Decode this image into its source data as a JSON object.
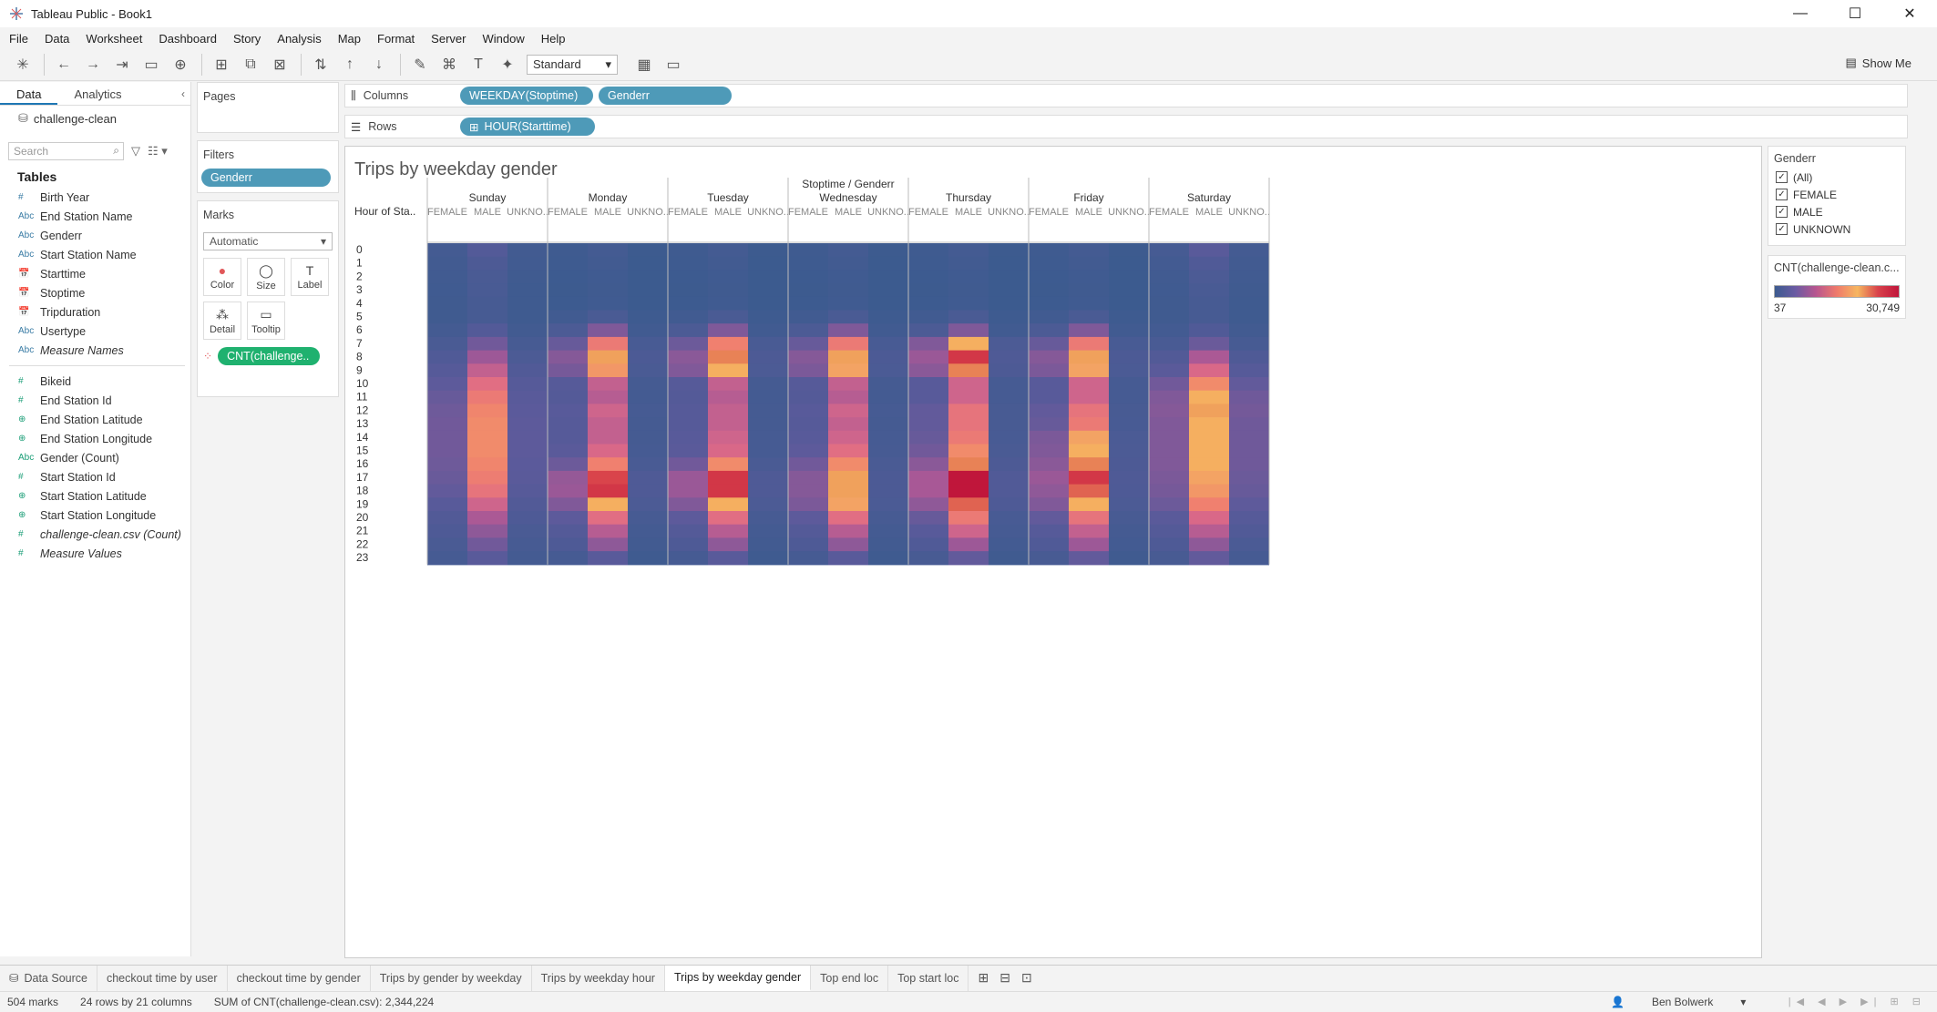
{
  "window": {
    "title": "Tableau Public - Book1",
    "minimize": "—",
    "maximize": "☐",
    "close": "✕"
  },
  "menu": [
    "File",
    "Data",
    "Worksheet",
    "Dashboard",
    "Story",
    "Analysis",
    "Map",
    "Format",
    "Server",
    "Window",
    "Help"
  ],
  "toolbar": {
    "fit_select": "Standard",
    "show_me_label": "Show Me"
  },
  "datapane": {
    "tabs": [
      "Data",
      "Analytics"
    ],
    "datasource": "challenge-clean",
    "search_placeholder": "Search",
    "tables_header": "Tables",
    "dimensions": [
      {
        "type": "#",
        "name": "Birth Year",
        "italic": false
      },
      {
        "type": "Abc",
        "name": "End Station Name",
        "italic": false
      },
      {
        "type": "Abc",
        "name": "Genderr",
        "italic": false
      },
      {
        "type": "Abc",
        "name": "Start Station Name",
        "italic": false
      },
      {
        "type": "date",
        "name": "Starttime",
        "italic": false
      },
      {
        "type": "date",
        "name": "Stoptime",
        "italic": false
      },
      {
        "type": "date",
        "name": "Tripduration",
        "italic": false
      },
      {
        "type": "Abc",
        "name": "Usertype",
        "italic": false
      },
      {
        "type": "Abc",
        "name": "Measure Names",
        "italic": true
      }
    ],
    "measures": [
      {
        "type": "#",
        "name": "Bikeid",
        "italic": false
      },
      {
        "type": "#",
        "name": "End Station Id",
        "italic": false
      },
      {
        "type": "globe",
        "name": "End Station Latitude",
        "italic": false
      },
      {
        "type": "globe",
        "name": "End Station Longitude",
        "italic": false
      },
      {
        "type": "Abc",
        "name": "Gender (Count)",
        "italic": false
      },
      {
        "type": "#",
        "name": "Start Station Id",
        "italic": false
      },
      {
        "type": "globe",
        "name": "Start Station Latitude",
        "italic": false
      },
      {
        "type": "globe",
        "name": "Start Station Longitude",
        "italic": false
      },
      {
        "type": "#",
        "name": "challenge-clean.csv (Count)",
        "italic": true
      },
      {
        "type": "#",
        "name": "Measure Values",
        "italic": true
      }
    ]
  },
  "cards": {
    "pages_title": "Pages",
    "filters_title": "Filters",
    "filter_pill": "Genderr",
    "marks_title": "Marks",
    "marks_type": "Automatic",
    "mark_buttons": [
      "Color",
      "Size",
      "Label",
      "Detail",
      "Tooltip"
    ],
    "marks_pill": "CNT(challenge.."
  },
  "shelves": {
    "columns_label": "Columns",
    "rows_label": "Rows",
    "columns_pills": [
      "WEEKDAY(Stoptime)",
      "Genderr"
    ],
    "rows_pills": [
      "HOUR(Starttime)"
    ]
  },
  "legend": {
    "filter_title": "Genderr",
    "filter_items": [
      "(All)",
      "FEMALE",
      "MALE",
      "UNKNOWN"
    ],
    "color_title": "CNT(challenge-clean.c...",
    "color_min": "37",
    "color_max": "30,749"
  },
  "sheet_tabs": [
    "Data Source",
    "checkout time by user",
    "checkout time by gender",
    "Trips by gender by weekday",
    "Trips by weekday hour",
    "Trips by weekday gender",
    "Top end loc",
    "Top start loc"
  ],
  "active_tab": "Trips by weekday gender",
  "status": {
    "marks": "504 marks",
    "dims": "24 rows by 21 columns",
    "sum": "SUM of CNT(challenge-clean.csv): 2,344,224",
    "user": "Ben Bolwerk"
  },
  "chart_data": {
    "type": "heatmap",
    "title": "Trips by weekday gender",
    "column_header": "Stoptime / Genderr",
    "row_header": "Hour of Sta..",
    "days": [
      "Sunday",
      "Monday",
      "Tuesday",
      "Wednesday",
      "Thursday",
      "Friday",
      "Saturday"
    ],
    "genders": [
      "FEMALE",
      "MALE",
      "UNKNO.."
    ],
    "hours": [
      "0",
      "1",
      "2",
      "3",
      "4",
      "5",
      "6",
      "7",
      "8",
      "9",
      "10",
      "11",
      "12",
      "13",
      "14",
      "15",
      "16",
      "17",
      "18",
      "19",
      "20",
      "21",
      "22",
      "23"
    ],
    "color_range": [
      37,
      30749
    ],
    "male_profiles": {
      "Sunday": [
        4000,
        3000,
        2500,
        2200,
        1900,
        2000,
        4000,
        7000,
        10000,
        13000,
        16000,
        18000,
        19500,
        20000,
        20000,
        20000,
        19500,
        18500,
        17000,
        14000,
        11000,
        9000,
        7000,
        5000
      ],
      "Monday": [
        1500,
        1000,
        800,
        700,
        800,
        2500,
        8000,
        18000,
        24000,
        21000,
        13000,
        12000,
        14000,
        13000,
        13000,
        15000,
        19000,
        27000,
        28000,
        23000,
        16000,
        12000,
        9000,
        5000
      ],
      "Tuesday": [
        1500,
        1000,
        800,
        700,
        800,
        2500,
        8000,
        19000,
        25000,
        23000,
        13000,
        12000,
        13000,
        13000,
        14000,
        15000,
        20000,
        28000,
        28000,
        23000,
        16000,
        12000,
        9000,
        5000
      ],
      "Wednesday": [
        1500,
        1000,
        800,
        700,
        800,
        2500,
        8000,
        18000,
        24000,
        22000,
        13000,
        12000,
        14000,
        13000,
        14000,
        16000,
        20000,
        24000,
        24000,
        22000,
        16000,
        12000,
        9000,
        5000
      ],
      "Thursday": [
        1500,
        1000,
        800,
        700,
        800,
        2500,
        8000,
        23000,
        28000,
        25000,
        14000,
        14000,
        17000,
        17000,
        18000,
        20000,
        25000,
        30749,
        30749,
        26000,
        18000,
        14000,
        10000,
        6000
      ],
      "Friday": [
        1500,
        1000,
        800,
        700,
        800,
        2500,
        8000,
        18000,
        24000,
        22000,
        14000,
        14000,
        17000,
        18000,
        22000,
        23000,
        25000,
        28000,
        26000,
        23000,
        17000,
        13000,
        10000,
        6000
      ],
      "Saturday": [
        5000,
        3500,
        2800,
        2300,
        2000,
        2000,
        3500,
        6500,
        11000,
        15000,
        20000,
        23000,
        24000,
        23000,
        23000,
        23000,
        23000,
        22000,
        21000,
        19000,
        15000,
        12000,
        9000,
        6000
      ]
    },
    "female_ratio": 0.35,
    "unknown_ratio": {
      "default": 0.12,
      "Saturday": 0.3,
      "Sunday": 0.28
    }
  }
}
